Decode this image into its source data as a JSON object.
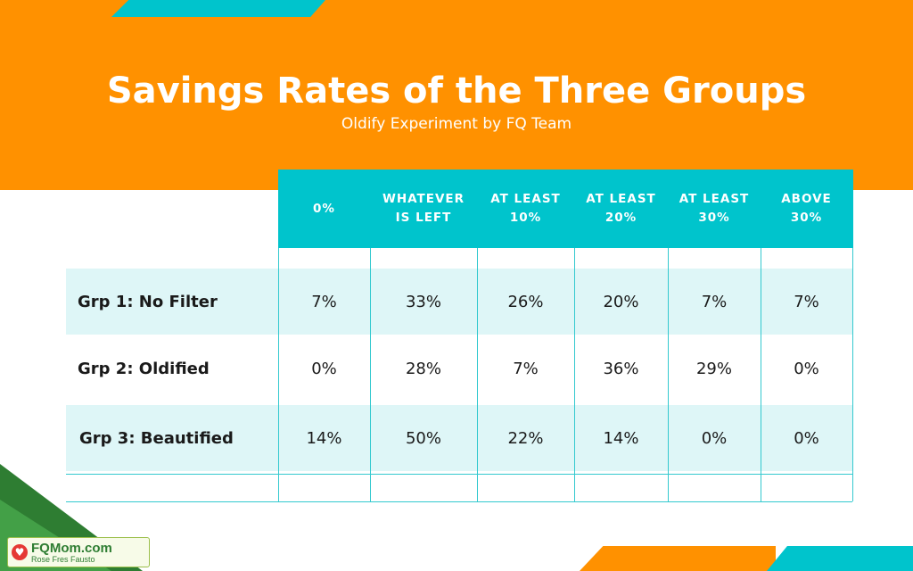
{
  "title": "Savings Rates of the Three Groups",
  "subtitle": "Oldify Experiment by FQ Team",
  "chart_data": {
    "type": "table",
    "columns": [
      "0%",
      "WHATEVER IS LEFT",
      "AT LEAST 10%",
      "AT LEAST 20%",
      "AT LEAST 30%",
      "ABOVE 30%"
    ],
    "header_lines": [
      [
        "0%"
      ],
      [
        "WHATEVER",
        "IS LEFT"
      ],
      [
        "AT LEAST",
        "10%"
      ],
      [
        "AT LEAST",
        "20%"
      ],
      [
        "AT LEAST",
        "30%"
      ],
      [
        "ABOVE",
        "30%"
      ]
    ],
    "rows": [
      {
        "label": "Grp 1: No Filter",
        "values": [
          "7%",
          "33%",
          "26%",
          "20%",
          "7%",
          "7%"
        ]
      },
      {
        "label": "Grp 2: Oldified",
        "values": [
          "0%",
          "28%",
          "7%",
          "36%",
          "29%",
          "0%"
        ]
      },
      {
        "label": "Grp 3: Beautified",
        "values": [
          "14%",
          "50%",
          "22%",
          "14%",
          "0%",
          "0%"
        ]
      }
    ]
  },
  "logo": {
    "main": "FQMom.com",
    "sub": "Rose Fres Fausto"
  },
  "colors": {
    "orange": "#ff9100",
    "teal": "#00c4cc",
    "row_band": "#def6f7",
    "text": "#1a1a1a"
  }
}
